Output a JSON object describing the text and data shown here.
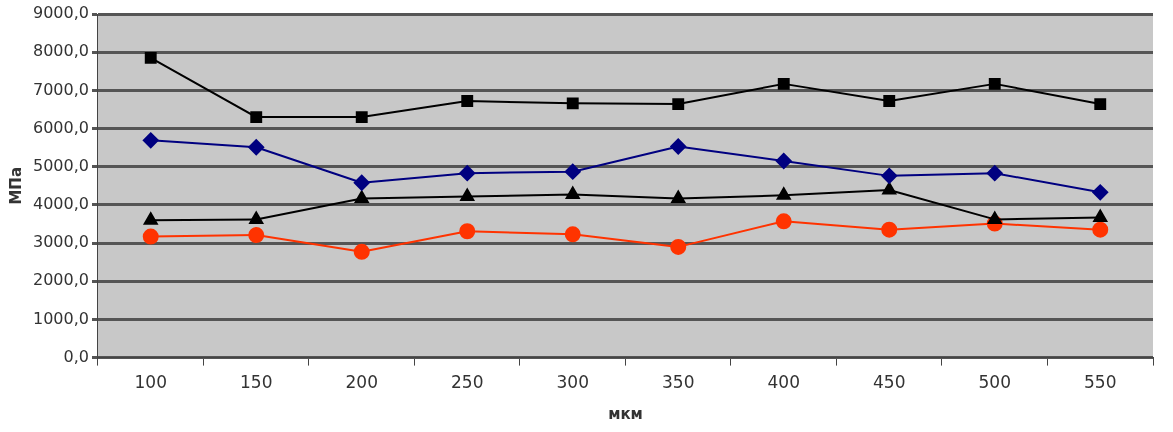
{
  "chart_data": {
    "type": "line",
    "xlabel": "мкм",
    "ylabel": "МПа",
    "categories": [
      "100",
      "150",
      "200",
      "250",
      "300",
      "350",
      "400",
      "450",
      "500",
      "550"
    ],
    "series": [
      {
        "color": "#000000",
        "marker": "square",
        "values": [
          7850,
          6300,
          6300,
          6720,
          6660,
          6640,
          7170,
          6720,
          7170,
          6640
        ]
      },
      {
        "color": "#000080",
        "marker": "diamond",
        "values": [
          5690,
          5510,
          4580,
          4830,
          4870,
          5530,
          5150,
          4760,
          4830,
          4330
        ]
      },
      {
        "color": "#000000",
        "marker": "triangle",
        "values": [
          3600,
          3620,
          4170,
          4220,
          4270,
          4170,
          4250,
          4390,
          3620,
          3670
        ]
      },
      {
        "color": "#ff3300",
        "marker": "circle",
        "values": [
          3170,
          3210,
          2770,
          3310,
          3230,
          2900,
          3570,
          3350,
          3510,
          3350
        ]
      }
    ],
    "ylim": [
      0,
      9000
    ],
    "yticks": [
      {
        "value": 0,
        "label": "0,0"
      },
      {
        "value": 1000,
        "label": "1000,0"
      },
      {
        "value": 2000,
        "label": "2000,0"
      },
      {
        "value": 3000,
        "label": "3000,0"
      },
      {
        "value": 4000,
        "label": "4000,0"
      },
      {
        "value": 5000,
        "label": "5000,0"
      },
      {
        "value": 6000,
        "label": "6000,0"
      },
      {
        "value": 7000,
        "label": "7000,0"
      },
      {
        "value": 8000,
        "label": "8000,0"
      },
      {
        "value": 9000,
        "label": "9000,0"
      }
    ],
    "grid": "y",
    "legend": false
  }
}
